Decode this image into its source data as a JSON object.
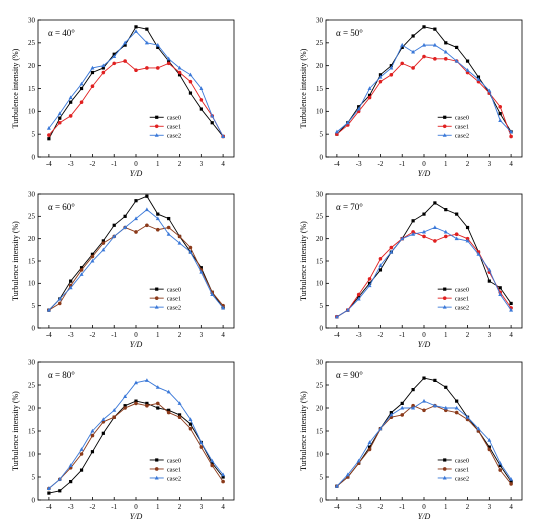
{
  "chart_data": [
    {
      "type": "line",
      "annotation": "α = 40°",
      "xlabel": "Y/D",
      "ylabel": "Turbulence intensity (%)",
      "xlim": [
        -4.5,
        4.5
      ],
      "ylim": [
        0,
        30
      ],
      "xticks": [
        -4,
        -3,
        -2,
        -1,
        0,
        1,
        2,
        3,
        4
      ],
      "yticks": [
        0,
        5,
        10,
        15,
        20,
        25,
        30
      ],
      "x": [
        -4,
        -3.5,
        -3,
        -2.5,
        -2,
        -1.5,
        -1,
        -0.5,
        0,
        0.5,
        1,
        1.5,
        2,
        2.5,
        3,
        3.5,
        4
      ],
      "series": [
        {
          "name": "case0",
          "color": "#000000",
          "values": [
            4.0,
            8.5,
            12.0,
            15.0,
            18.5,
            19.5,
            22.5,
            24.5,
            28.5,
            28.0,
            24.0,
            21.0,
            18.0,
            14.0,
            10.5,
            7.5,
            4.5
          ]
        },
        {
          "name": "case1",
          "color": "#e02020",
          "values": [
            4.8,
            7.5,
            9.0,
            12.0,
            15.5,
            18.5,
            20.5,
            21.0,
            19.0,
            19.5,
            19.5,
            20.5,
            18.5,
            16.5,
            12.5,
            9.0,
            4.5
          ]
        },
        {
          "name": "case2",
          "color": "#3a78d8",
          "values": [
            6.3,
            9.5,
            13.0,
            16.0,
            19.5,
            20.0,
            22.0,
            25.0,
            27.5,
            25.0,
            24.5,
            21.5,
            19.5,
            18.0,
            15.0,
            9.0,
            4.5
          ]
        }
      ],
      "legend": "lower-right"
    },
    {
      "type": "line",
      "annotation": "α = 50°",
      "xlabel": "Y/D",
      "ylabel": "Turbulence intensity (%)",
      "xlim": [
        -4.5,
        4.5
      ],
      "ylim": [
        0,
        30
      ],
      "xticks": [
        -4,
        -3,
        -2,
        -1,
        0,
        1,
        2,
        3,
        4
      ],
      "yticks": [
        0,
        5,
        10,
        15,
        20,
        25,
        30
      ],
      "x": [
        -4,
        -3.5,
        -3,
        -2.5,
        -2,
        -1.5,
        -1,
        -0.5,
        0,
        0.5,
        1,
        1.5,
        2,
        2.5,
        3,
        3.5,
        4
      ],
      "series": [
        {
          "name": "case0",
          "color": "#000000",
          "values": [
            5.0,
            7.5,
            11.0,
            13.5,
            18.0,
            20.0,
            24.0,
            26.5,
            28.5,
            28.0,
            25.0,
            24.0,
            21.0,
            17.5,
            14.0,
            9.5,
            5.5
          ]
        },
        {
          "name": "case1",
          "color": "#e02020",
          "values": [
            5.0,
            7.0,
            10.0,
            13.0,
            16.5,
            18.0,
            20.5,
            19.5,
            22.0,
            21.5,
            21.5,
            21.0,
            18.5,
            16.5,
            14.0,
            11.0,
            4.5
          ]
        },
        {
          "name": "case2",
          "color": "#3a78d8",
          "values": [
            5.5,
            7.5,
            10.5,
            15.0,
            17.5,
            19.5,
            24.5,
            23.0,
            24.5,
            24.5,
            23.0,
            21.0,
            19.0,
            17.0,
            14.5,
            8.0,
            5.5
          ]
        }
      ],
      "legend": "lower-right"
    },
    {
      "type": "line",
      "annotation": "α = 60°",
      "xlabel": "Y/D",
      "ylabel": "Turbulence intensity (%)",
      "xlim": [
        -4.5,
        4.5
      ],
      "ylim": [
        0,
        30
      ],
      "xticks": [
        -4,
        -3,
        -2,
        -1,
        0,
        1,
        2,
        3,
        4
      ],
      "yticks": [
        0,
        5,
        10,
        15,
        20,
        25,
        30
      ],
      "x": [
        -4,
        -3.5,
        -3,
        -2.5,
        -2,
        -1.5,
        -1,
        -0.5,
        0,
        0.5,
        1,
        1.5,
        2,
        2.5,
        3,
        3.5,
        4
      ],
      "series": [
        {
          "name": "case0",
          "color": "#000000",
          "values": [
            4.0,
            6.5,
            10.5,
            13.5,
            16.5,
            19.5,
            23.0,
            25.0,
            28.5,
            29.5,
            25.5,
            24.5,
            20.5,
            17.0,
            13.5,
            8.0,
            4.5
          ]
        },
        {
          "name": "case1",
          "color": "#8b3a1a",
          "values": [
            4.0,
            5.5,
            9.5,
            13.0,
            16.0,
            19.0,
            20.5,
            22.5,
            21.5,
            23.0,
            22.0,
            22.5,
            20.5,
            18.0,
            13.0,
            8.0,
            5.0
          ]
        },
        {
          "name": "case2",
          "color": "#3a78d8",
          "values": [
            4.0,
            6.5,
            9.0,
            12.0,
            15.0,
            17.5,
            20.5,
            22.5,
            24.5,
            26.5,
            24.5,
            21.0,
            19.0,
            17.0,
            12.5,
            7.5,
            4.5
          ]
        }
      ],
      "legend": "lower-right"
    },
    {
      "type": "line",
      "annotation": "α = 70°",
      "xlabel": "Y/D",
      "ylabel": "Turbulence intensity (%)",
      "xlim": [
        -4.5,
        4.5
      ],
      "ylim": [
        0,
        30
      ],
      "xticks": [
        -4,
        -3,
        -2,
        -1,
        0,
        1,
        2,
        3,
        4
      ],
      "yticks": [
        0,
        5,
        10,
        15,
        20,
        25,
        30
      ],
      "x": [
        -4,
        -3.5,
        -3,
        -2.5,
        -2,
        -1.5,
        -1,
        -0.5,
        0,
        0.5,
        1,
        1.5,
        2,
        2.5,
        3,
        3.5,
        4
      ],
      "series": [
        {
          "name": "case0",
          "color": "#000000",
          "values": [
            2.5,
            4.0,
            7.0,
            10.0,
            13.0,
            17.0,
            20.0,
            24.0,
            25.5,
            28.0,
            26.5,
            25.5,
            22.5,
            17.0,
            10.5,
            9.0,
            5.5
          ]
        },
        {
          "name": "case1",
          "color": "#e02020",
          "values": [
            2.5,
            4.0,
            7.5,
            11.0,
            15.5,
            18.0,
            20.0,
            21.5,
            20.5,
            19.5,
            20.5,
            21.0,
            20.0,
            17.0,
            12.5,
            8.0,
            4.5
          ]
        },
        {
          "name": "case2",
          "color": "#3a78d8",
          "values": [
            2.5,
            4.0,
            6.5,
            9.5,
            14.0,
            17.0,
            20.0,
            21.0,
            21.5,
            22.5,
            21.5,
            20.0,
            19.5,
            16.5,
            13.0,
            7.5,
            4.0
          ]
        }
      ],
      "legend": "lower-right"
    },
    {
      "type": "line",
      "annotation": "α = 80°",
      "xlabel": "Y/D",
      "ylabel": "Turbulence intensity (%)",
      "xlim": [
        -4.5,
        4.5
      ],
      "ylim": [
        0,
        30
      ],
      "xticks": [
        -4,
        -3,
        -2,
        -1,
        0,
        1,
        2,
        3,
        4
      ],
      "yticks": [
        0,
        5,
        10,
        15,
        20,
        25,
        30
      ],
      "x": [
        -4,
        -3.5,
        -3,
        -2.5,
        -2,
        -1.5,
        -1,
        -0.5,
        0,
        0.5,
        1,
        1.5,
        2,
        2.5,
        3,
        3.5,
        4
      ],
      "series": [
        {
          "name": "case0",
          "color": "#000000",
          "values": [
            1.5,
            2.0,
            4.0,
            6.5,
            10.5,
            14.5,
            18.0,
            20.5,
            21.5,
            21.0,
            20.0,
            19.5,
            18.5,
            16.5,
            12.5,
            8.0,
            5.0
          ]
        },
        {
          "name": "case1",
          "color": "#8b3a1a",
          "values": [
            2.5,
            4.5,
            7.0,
            10.0,
            14.0,
            17.0,
            18.0,
            20.0,
            21.0,
            20.5,
            21.0,
            19.0,
            18.0,
            15.5,
            11.5,
            7.5,
            4.0
          ]
        },
        {
          "name": "case2",
          "color": "#3a78d8",
          "values": [
            2.5,
            4.5,
            7.5,
            11.0,
            15.0,
            17.5,
            19.5,
            22.5,
            25.5,
            26.0,
            24.5,
            23.5,
            21.0,
            17.5,
            12.5,
            8.5,
            5.5
          ]
        }
      ],
      "legend": "lower-right"
    },
    {
      "type": "line",
      "annotation": "α = 90°",
      "xlabel": "Y/D",
      "ylabel": "Turbulence intensity (%)",
      "xlim": [
        -4.5,
        4.5
      ],
      "ylim": [
        0,
        30
      ],
      "xticks": [
        -4,
        -3,
        -2,
        -1,
        0,
        1,
        2,
        3,
        4
      ],
      "yticks": [
        0,
        5,
        10,
        15,
        20,
        25,
        30
      ],
      "x": [
        -4,
        -3.5,
        -3,
        -2.5,
        -2,
        -1.5,
        -1,
        -0.5,
        0,
        0.5,
        1,
        1.5,
        2,
        2.5,
        3,
        3.5,
        4
      ],
      "series": [
        {
          "name": "case0",
          "color": "#000000",
          "values": [
            3.0,
            5.0,
            8.0,
            11.5,
            15.5,
            19.0,
            21.0,
            24.0,
            26.5,
            26.0,
            24.5,
            21.5,
            18.0,
            15.0,
            11.5,
            7.5,
            4.0
          ]
        },
        {
          "name": "case1",
          "color": "#8b3a1a",
          "values": [
            3.0,
            5.0,
            8.0,
            11.0,
            15.5,
            18.0,
            18.5,
            20.5,
            19.5,
            20.5,
            19.5,
            19.0,
            17.5,
            15.0,
            11.0,
            6.5,
            3.5
          ]
        },
        {
          "name": "case2",
          "color": "#3a78d8",
          "values": [
            3.0,
            5.5,
            8.5,
            12.5,
            15.5,
            18.5,
            20.0,
            20.0,
            21.5,
            20.5,
            20.0,
            20.0,
            18.0,
            15.5,
            13.0,
            8.0,
            4.5
          ]
        }
      ],
      "legend": "lower-right"
    }
  ]
}
